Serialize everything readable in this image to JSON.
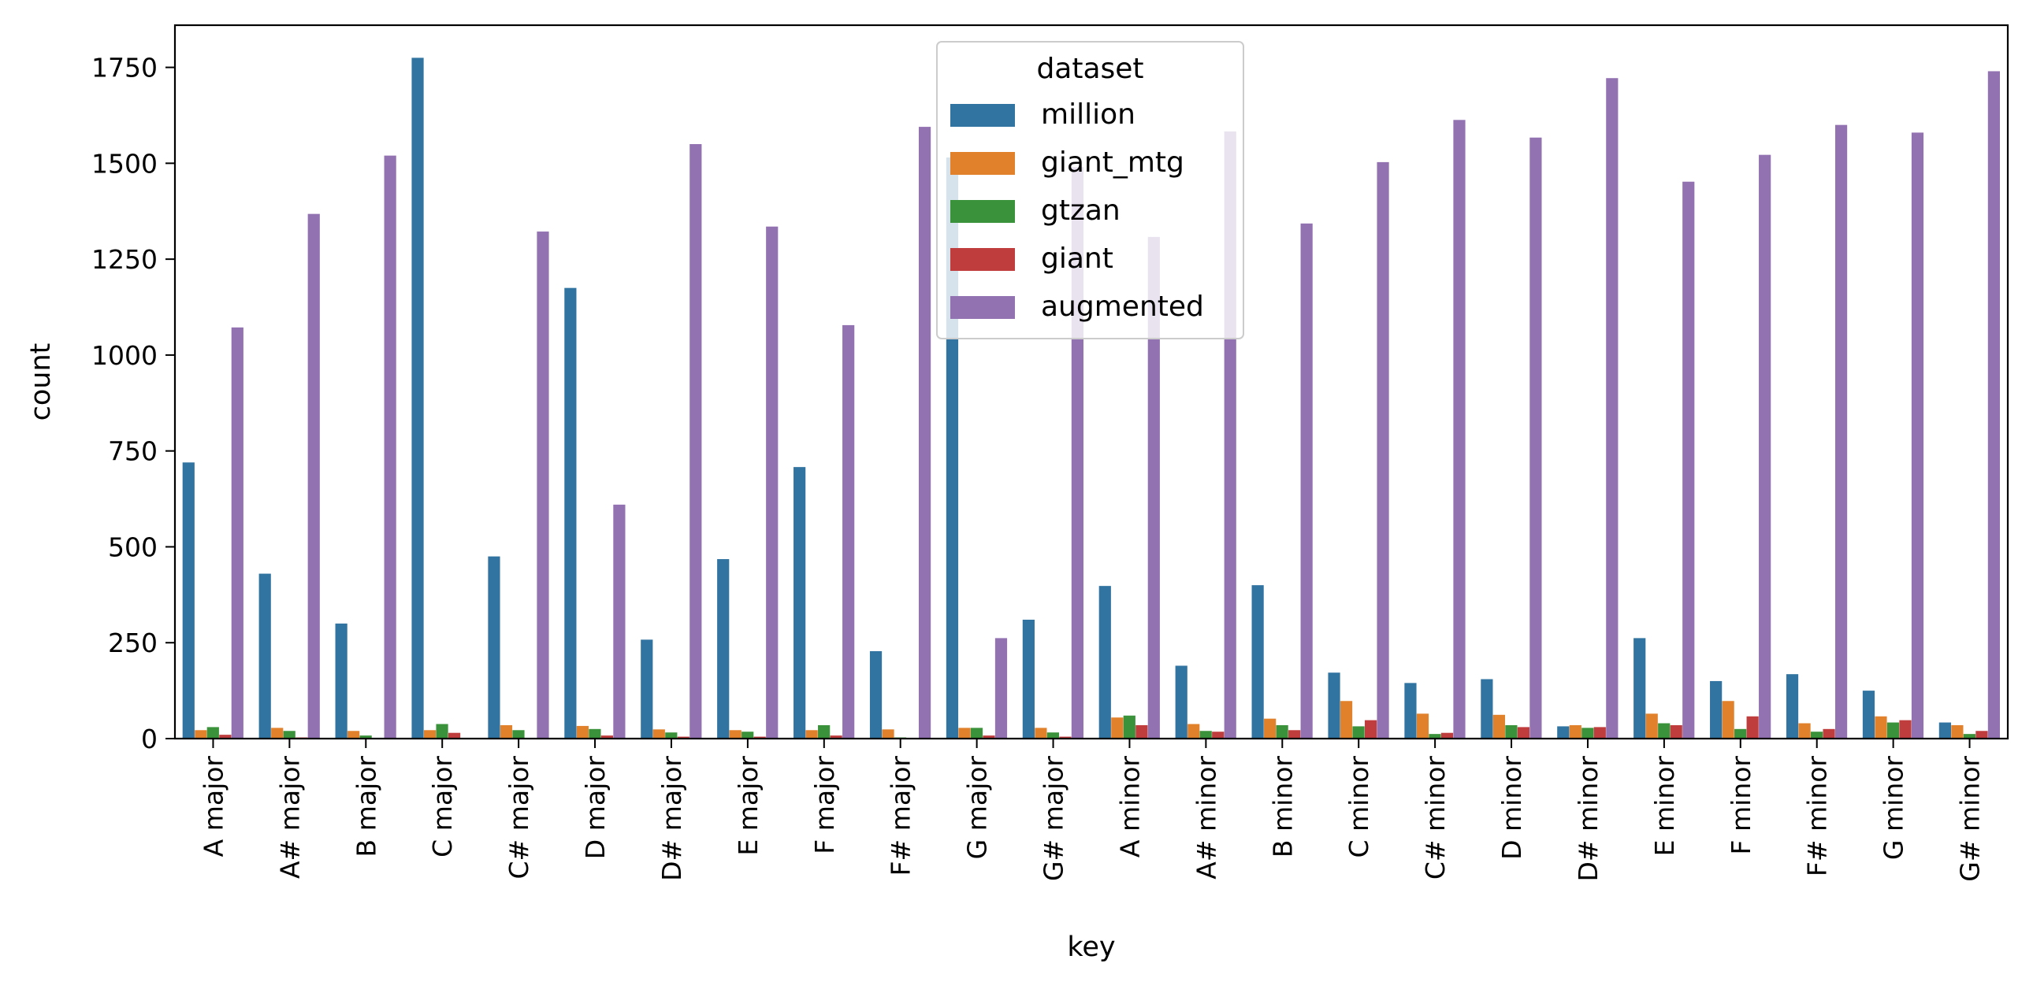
{
  "chart_data": {
    "type": "bar",
    "title": "",
    "xlabel": "key",
    "ylabel": "count",
    "ylim": [
      0,
      1860
    ],
    "yticks": [
      0,
      250,
      500,
      750,
      1000,
      1250,
      1500,
      1750
    ],
    "ytick_labels": [
      "0",
      "250",
      "500",
      "750",
      "1000",
      "1250",
      "1500",
      "1750"
    ],
    "grid": false,
    "categories": [
      "A major",
      "A# major",
      "B major",
      "C major",
      "C# major",
      "D major",
      "D# major",
      "E major",
      "F major",
      "F# major",
      "G major",
      "G# major",
      "A minor",
      "A# minor",
      "B minor",
      "C minor",
      "C# minor",
      "D minor",
      "D# minor",
      "E minor",
      "F minor",
      "F# minor",
      "G minor",
      "G# minor"
    ],
    "legend": {
      "title": "dataset",
      "placement": "upper center"
    },
    "series": [
      {
        "name": "million",
        "color": "#3274a1",
        "values": [
          720,
          430,
          300,
          1775,
          475,
          1175,
          258,
          468,
          708,
          228,
          1515,
          310,
          398,
          190,
          400,
          172,
          145,
          155,
          32,
          262,
          150,
          168,
          125,
          42
        ]
      },
      {
        "name": "giant_mtg",
        "color": "#e1812c",
        "values": [
          22,
          28,
          20,
          22,
          35,
          33,
          24,
          22,
          22,
          24,
          28,
          28,
          55,
          38,
          52,
          98,
          65,
          62,
          35,
          65,
          98,
          40,
          58,
          35
        ]
      },
      {
        "name": "gtzan",
        "color": "#3a923a",
        "values": [
          30,
          20,
          8,
          38,
          22,
          25,
          16,
          18,
          35,
          3,
          28,
          16,
          60,
          20,
          35,
          32,
          12,
          35,
          28,
          40,
          25,
          18,
          42,
          12
        ]
      },
      {
        "name": "giant",
        "color": "#c03d3e",
        "values": [
          10,
          3,
          2,
          15,
          2,
          8,
          5,
          5,
          8,
          2,
          8,
          5,
          35,
          18,
          22,
          48,
          15,
          30,
          30,
          35,
          58,
          25,
          48,
          20
        ]
      },
      {
        "name": "augmented",
        "color": "#9372b2",
        "values": [
          1072,
          1368,
          1520,
          0,
          1322,
          610,
          1550,
          1335,
          1078,
          1595,
          262,
          1490,
          1308,
          1583,
          1343,
          1503,
          1613,
          1567,
          1722,
          1452,
          1522,
          1600,
          1580,
          1740
        ]
      }
    ]
  }
}
